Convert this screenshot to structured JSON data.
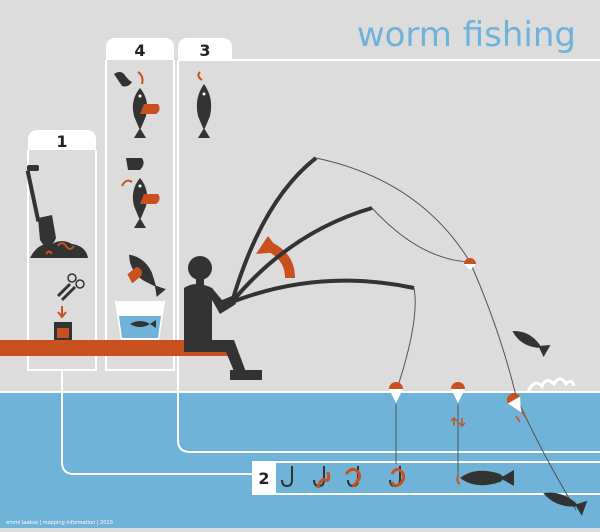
{
  "title": "worm fishing",
  "steps": {
    "one": "1",
    "two": "2",
    "three": "3",
    "four": "4"
  },
  "credit": "emmi laakso | mapping information | 2010",
  "colors": {
    "background": "#dcdcdc",
    "water": "#6fb3d9",
    "accent": "#c8511f",
    "title": "#6fb3d9",
    "ink": "#333333",
    "white": "#ffffff"
  }
}
